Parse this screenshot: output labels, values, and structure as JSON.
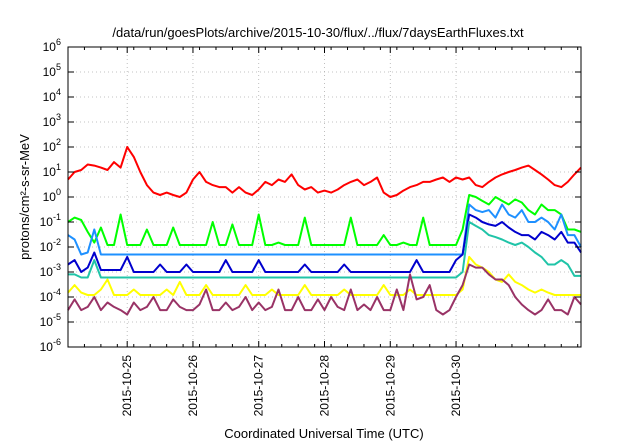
{
  "chart_data": {
    "type": "line",
    "title": "/data/run/goesPlots/archive/2015-10-30/flux/../flux/7daysEarthFluxes.txt",
    "xlabel": "Coordinated Universal Time (UTC)",
    "ylabel": "protons/cm²-s-sr-MeV",
    "y_scale": "log",
    "ylim": [
      1e-06,
      1000000.0
    ],
    "xlim": [
      -0.9,
      6.9
    ],
    "grid": true,
    "legend": "none",
    "y_ticks": [
      {
        "base": "10",
        "exp": "6"
      },
      {
        "base": "10",
        "exp": "5"
      },
      {
        "base": "10",
        "exp": "4"
      },
      {
        "base": "10",
        "exp": "3"
      },
      {
        "base": "10",
        "exp": "2"
      },
      {
        "base": "10",
        "exp": "1"
      },
      {
        "base": "10",
        "exp": "0"
      },
      {
        "base": "10",
        "exp": "-1"
      },
      {
        "base": "10",
        "exp": "-2"
      },
      {
        "base": "10",
        "exp": "-3"
      },
      {
        "base": "10",
        "exp": "-4"
      },
      {
        "base": "10",
        "exp": "-5"
      },
      {
        "base": "10",
        "exp": "-6"
      }
    ],
    "x_ticks": [
      "2015-10-25",
      "2015-10-26",
      "2015-10-27",
      "2015-10-28",
      "2015-10-29",
      "2015-10-30"
    ],
    "x_note": "x values are days offset from 2015-10-25 00:00 UTC",
    "series": [
      {
        "color": "#ff0000",
        "x": [
          -0.9,
          -0.8,
          -0.7,
          -0.6,
          -0.5,
          -0.4,
          -0.3,
          -0.2,
          -0.1,
          0,
          0.1,
          0.2,
          0.3,
          0.4,
          0.5,
          0.6,
          0.7,
          0.8,
          0.9,
          1,
          1.1,
          1.2,
          1.3,
          1.4,
          1.5,
          1.6,
          1.7,
          1.8,
          1.9,
          2,
          2.1,
          2.2,
          2.3,
          2.4,
          2.5,
          2.6,
          2.7,
          2.8,
          2.9,
          3,
          3.1,
          3.2,
          3.3,
          3.4,
          3.5,
          3.6,
          3.7,
          3.8,
          3.9,
          4,
          4.1,
          4.2,
          4.3,
          4.4,
          4.5,
          4.6,
          4.7,
          4.8,
          4.9,
          5,
          5.1,
          5.2,
          5.3,
          5.4,
          5.5,
          5.6,
          5.7,
          5.8,
          5.9,
          6,
          6.1,
          6.2,
          6.3,
          6.4,
          6.5,
          6.6,
          6.7,
          6.8,
          6.9
        ],
        "y": [
          5,
          10,
          12,
          20,
          18,
          15,
          12,
          25,
          15,
          100,
          40,
          10,
          3,
          1.5,
          1.2,
          1.5,
          1.2,
          1.0,
          1.5,
          5,
          10,
          4,
          3,
          2.5,
          2.5,
          1.5,
          2.5,
          1.5,
          1.2,
          2,
          4,
          3,
          5,
          4,
          8,
          3,
          2,
          2.5,
          1.5,
          1.8,
          1.5,
          2,
          3,
          4,
          5,
          3,
          4,
          6,
          1.5,
          1.0,
          1.2,
          1.8,
          2.5,
          3,
          4,
          4,
          5,
          6,
          4,
          6,
          5,
          6,
          3,
          2.5,
          4,
          6,
          8,
          10,
          12,
          15,
          18,
          12,
          8,
          5,
          3,
          2.5,
          4,
          8,
          15
        ]
      },
      {
        "color": "#00ff00",
        "x": [
          -0.9,
          -0.8,
          -0.7,
          -0.6,
          -0.5,
          -0.4,
          -0.3,
          -0.2,
          -0.1,
          0,
          0.1,
          0.2,
          0.3,
          0.4,
          0.5,
          0.6,
          0.7,
          0.8,
          0.9,
          1,
          1.1,
          1.2,
          1.3,
          1.4,
          1.5,
          1.6,
          1.7,
          1.8,
          1.9,
          2,
          2.1,
          2.2,
          2.3,
          2.4,
          2.5,
          2.6,
          2.7,
          2.8,
          2.9,
          3,
          3.1,
          3.2,
          3.3,
          3.4,
          3.5,
          3.6,
          3.7,
          3.8,
          3.9,
          4,
          4.1,
          4.2,
          4.3,
          4.4,
          4.5,
          4.6,
          4.7,
          4.8,
          4.9,
          5,
          5.1,
          5.2,
          5.3,
          5.4,
          5.5,
          5.6,
          5.7,
          5.8,
          5.9,
          6,
          6.1,
          6.2,
          6.3,
          6.4,
          6.5,
          6.6,
          6.7,
          6.8,
          6.9
        ],
        "y": [
          0.1,
          0.15,
          0.12,
          0.04,
          0.015,
          0.06,
          0.012,
          0.012,
          0.2,
          0.012,
          0.012,
          0.012,
          0.05,
          0.012,
          0.012,
          0.012,
          0.06,
          0.012,
          0.012,
          0.012,
          0.012,
          0.012,
          0.1,
          0.012,
          0.012,
          0.08,
          0.012,
          0.012,
          0.012,
          0.2,
          0.012,
          0.012,
          0.015,
          0.012,
          0.012,
          0.012,
          0.15,
          0.012,
          0.012,
          0.012,
          0.012,
          0.012,
          0.012,
          0.15,
          0.012,
          0.012,
          0.012,
          0.012,
          0.03,
          0.012,
          0.012,
          0.015,
          0.012,
          0.012,
          0.15,
          0.012,
          0.012,
          0.012,
          0.012,
          0.012,
          0.05,
          1.2,
          1.0,
          0.7,
          0.5,
          1.0,
          0.7,
          0.5,
          0.8,
          0.6,
          0.3,
          0.2,
          0.5,
          0.3,
          0.3,
          0.2,
          0.05,
          0.05,
          0.04
        ]
      },
      {
        "color": "#1e90ff",
        "x": [
          -0.9,
          -0.8,
          -0.7,
          -0.6,
          -0.5,
          -0.4,
          -0.3,
          -0.2,
          -0.1,
          0,
          0.1,
          0.2,
          0.3,
          0.4,
          0.5,
          0.6,
          0.7,
          0.8,
          0.9,
          1,
          1.1,
          1.2,
          1.3,
          1.4,
          1.5,
          1.6,
          1.7,
          1.8,
          1.9,
          2,
          2.1,
          2.2,
          2.3,
          2.4,
          2.5,
          2.6,
          2.7,
          2.8,
          2.9,
          3,
          3.1,
          3.2,
          3.3,
          3.4,
          3.5,
          3.6,
          3.7,
          3.8,
          3.9,
          4,
          4.1,
          4.2,
          4.3,
          4.4,
          4.5,
          4.6,
          4.7,
          4.8,
          4.9,
          5,
          5.1,
          5.2,
          5.3,
          5.4,
          5.5,
          5.6,
          5.7,
          5.8,
          5.9,
          6,
          6.1,
          6.2,
          6.3,
          6.4,
          6.5,
          6.6,
          6.7,
          6.8,
          6.9
        ],
        "y": [
          0.03,
          0.02,
          0.005,
          0.006,
          0.05,
          0.005,
          0.005,
          0.005,
          0.005,
          0.005,
          0.005,
          0.005,
          0.005,
          0.005,
          0.005,
          0.005,
          0.005,
          0.005,
          0.005,
          0.005,
          0.005,
          0.005,
          0.005,
          0.005,
          0.005,
          0.005,
          0.005,
          0.005,
          0.005,
          0.005,
          0.005,
          0.005,
          0.005,
          0.005,
          0.005,
          0.005,
          0.005,
          0.005,
          0.005,
          0.005,
          0.005,
          0.005,
          0.005,
          0.005,
          0.005,
          0.005,
          0.005,
          0.005,
          0.005,
          0.005,
          0.005,
          0.005,
          0.005,
          0.005,
          0.005,
          0.005,
          0.005,
          0.005,
          0.005,
          0.005,
          0.005,
          0.5,
          0.3,
          0.25,
          0.3,
          0.15,
          0.5,
          0.2,
          0.15,
          0.3,
          0.1,
          0.1,
          0.15,
          0.1,
          0.05,
          0.2,
          0.03,
          0.03,
          0.01
        ]
      },
      {
        "color": "#0000cd",
        "x": [
          -0.9,
          -0.8,
          -0.7,
          -0.6,
          -0.5,
          -0.4,
          -0.3,
          -0.2,
          -0.1,
          0,
          0.1,
          0.2,
          0.3,
          0.4,
          0.5,
          0.6,
          0.7,
          0.8,
          0.9,
          1,
          1.1,
          1.2,
          1.3,
          1.4,
          1.5,
          1.6,
          1.7,
          1.8,
          1.9,
          2,
          2.1,
          2.2,
          2.3,
          2.4,
          2.5,
          2.6,
          2.7,
          2.8,
          2.9,
          3,
          3.1,
          3.2,
          3.3,
          3.4,
          3.5,
          3.6,
          3.7,
          3.8,
          3.9,
          4,
          4.1,
          4.2,
          4.3,
          4.4,
          4.5,
          4.6,
          4.7,
          4.8,
          4.9,
          5,
          5.1,
          5.2,
          5.3,
          5.4,
          5.5,
          5.6,
          5.7,
          5.8,
          5.9,
          6,
          6.1,
          6.2,
          6.3,
          6.4,
          6.5,
          6.6,
          6.7,
          6.8,
          6.9
        ],
        "y": [
          0.002,
          0.003,
          0.001,
          0.0015,
          0.006,
          0.0012,
          0.0012,
          0.0012,
          0.0012,
          0.004,
          0.001,
          0.001,
          0.001,
          0.001,
          0.002,
          0.001,
          0.001,
          0.001,
          0.002,
          0.001,
          0.001,
          0.001,
          0.001,
          0.001,
          0.003,
          0.001,
          0.001,
          0.001,
          0.001,
          0.003,
          0.001,
          0.001,
          0.001,
          0.001,
          0.001,
          0.001,
          0.002,
          0.001,
          0.001,
          0.001,
          0.001,
          0.001,
          0.002,
          0.001,
          0.001,
          0.001,
          0.001,
          0.001,
          0.001,
          0.001,
          0.001,
          0.001,
          0.001,
          0.003,
          0.001,
          0.001,
          0.001,
          0.001,
          0.001,
          0.003,
          0.005,
          0.2,
          0.15,
          0.1,
          0.08,
          0.07,
          0.1,
          0.06,
          0.04,
          0.03,
          0.03,
          0.02,
          0.04,
          0.03,
          0.02,
          0.04,
          0.015,
          0.015,
          0.006
        ]
      },
      {
        "color": "#20c4a8",
        "x": [
          -0.9,
          -0.8,
          -0.7,
          -0.6,
          -0.5,
          -0.4,
          -0.3,
          -0.2,
          -0.1,
          0,
          0.1,
          0.2,
          0.3,
          0.4,
          0.5,
          0.6,
          0.7,
          0.8,
          0.9,
          1,
          1.1,
          1.2,
          1.3,
          1.4,
          1.5,
          1.6,
          1.7,
          1.8,
          1.9,
          2,
          2.1,
          2.2,
          2.3,
          2.4,
          2.5,
          2.6,
          2.7,
          2.8,
          2.9,
          3,
          3.1,
          3.2,
          3.3,
          3.4,
          3.5,
          3.6,
          3.7,
          3.8,
          3.9,
          4,
          4.1,
          4.2,
          4.3,
          4.4,
          4.5,
          4.6,
          4.7,
          4.8,
          4.9,
          5,
          5.1,
          5.2,
          5.3,
          5.4,
          5.5,
          5.6,
          5.7,
          5.8,
          5.9,
          6,
          6.1,
          6.2,
          6.3,
          6.4,
          6.5,
          6.6,
          6.7,
          6.8,
          6.9
        ],
        "y": [
          0.0008,
          0.0008,
          0.0006,
          0.0006,
          0.003,
          0.0006,
          0.0006,
          0.0006,
          0.0006,
          0.0006,
          0.0006,
          0.0006,
          0.0006,
          0.0006,
          0.0006,
          0.0006,
          0.0006,
          0.0006,
          0.0006,
          0.0006,
          0.0006,
          0.0006,
          0.0006,
          0.0006,
          0.0006,
          0.0006,
          0.0006,
          0.0006,
          0.0006,
          0.0006,
          0.0006,
          0.0006,
          0.0006,
          0.0006,
          0.0006,
          0.0006,
          0.0006,
          0.0006,
          0.0006,
          0.0006,
          0.0006,
          0.0006,
          0.0006,
          0.0006,
          0.0006,
          0.0006,
          0.0006,
          0.0006,
          0.0006,
          0.0006,
          0.0006,
          0.0006,
          0.0006,
          0.0006,
          0.0006,
          0.0006,
          0.0006,
          0.0006,
          0.0006,
          0.0006,
          0.001,
          0.1,
          0.07,
          0.05,
          0.03,
          0.025,
          0.02,
          0.015,
          0.012,
          0.015,
          0.01,
          0.006,
          0.004,
          0.002,
          0.002,
          0.003,
          0.002,
          0.0007,
          0.0007
        ]
      },
      {
        "color": "#ffff00",
        "x": [
          -0.9,
          -0.8,
          -0.7,
          -0.6,
          -0.5,
          -0.4,
          -0.3,
          -0.2,
          -0.1,
          0,
          0.1,
          0.2,
          0.3,
          0.4,
          0.5,
          0.6,
          0.7,
          0.8,
          0.9,
          1,
          1.1,
          1.2,
          1.3,
          1.4,
          1.5,
          1.6,
          1.7,
          1.8,
          1.9,
          2,
          2.1,
          2.2,
          2.3,
          2.4,
          2.5,
          2.6,
          2.7,
          2.8,
          2.9,
          3,
          3.1,
          3.2,
          3.3,
          3.4,
          3.5,
          3.6,
          3.7,
          3.8,
          3.9,
          4,
          4.1,
          4.2,
          4.3,
          4.4,
          4.5,
          4.6,
          4.7,
          4.8,
          4.9,
          5,
          5.1,
          5.2,
          5.3,
          5.4,
          5.5,
          5.6,
          5.7,
          5.8,
          5.9,
          6,
          6.1,
          6.2,
          6.3,
          6.4,
          6.5,
          6.6,
          6.7,
          6.8,
          6.9
        ],
        "y": [
          0.00015,
          0.0003,
          0.00015,
          0.00012,
          0.00012,
          0.0002,
          0.0005,
          0.00012,
          0.00012,
          0.00012,
          0.0002,
          0.00012,
          0.00012,
          0.00012,
          0.00012,
          0.0002,
          0.00012,
          0.0004,
          0.00012,
          0.00012,
          0.00012,
          0.0003,
          0.00012,
          0.00012,
          0.00012,
          0.00012,
          0.00012,
          0.0003,
          0.00012,
          0.00012,
          0.00012,
          0.0002,
          0.00012,
          0.00012,
          0.00012,
          0.00012,
          0.0003,
          0.00012,
          0.00012,
          0.00012,
          0.00012,
          0.00012,
          0.0002,
          0.00012,
          0.00012,
          0.00012,
          0.00012,
          0.00012,
          0.0003,
          0.00012,
          0.00012,
          0.00012,
          0.0002,
          0.00012,
          0.00012,
          0.00012,
          0.00012,
          0.00012,
          0.00012,
          0.00012,
          0.0002,
          0.004,
          0.002,
          0.0015,
          0.001,
          0.0005,
          0.0004,
          0.0008,
          0.0004,
          0.0003,
          0.0002,
          0.00015,
          0.0002,
          0.00015,
          0.00012,
          0.00012,
          0.00012,
          0.00012,
          0.00012
        ]
      },
      {
        "color": "#993366",
        "x": [
          -0.9,
          -0.8,
          -0.7,
          -0.6,
          -0.5,
          -0.4,
          -0.3,
          -0.2,
          -0.1,
          0,
          0.1,
          0.2,
          0.3,
          0.4,
          0.5,
          0.6,
          0.7,
          0.8,
          0.9,
          1,
          1.1,
          1.2,
          1.3,
          1.4,
          1.5,
          1.6,
          1.7,
          1.8,
          1.9,
          2,
          2.1,
          2.2,
          2.3,
          2.4,
          2.5,
          2.6,
          2.7,
          2.8,
          2.9,
          3,
          3.1,
          3.2,
          3.3,
          3.4,
          3.5,
          3.6,
          3.7,
          3.8,
          3.9,
          4,
          4.1,
          4.2,
          4.3,
          4.4,
          4.5,
          4.6,
          4.7,
          4.8,
          4.9,
          5,
          5.1,
          5.2,
          5.3,
          5.4,
          5.5,
          5.6,
          5.7,
          5.8,
          5.9,
          6,
          6.1,
          6.2,
          6.3,
          6.4,
          6.5,
          6.6,
          6.7,
          6.8,
          6.9
        ],
        "y": [
          3e-05,
          8e-05,
          3e-05,
          4e-05,
          0.0001,
          3e-05,
          6e-05,
          4e-05,
          3e-05,
          2e-05,
          6e-05,
          3e-05,
          4e-05,
          0.0001,
          3e-05,
          3e-05,
          8e-05,
          4e-05,
          3e-05,
          3e-05,
          5e-05,
          0.0002,
          3e-05,
          3e-05,
          6e-05,
          3e-05,
          4e-05,
          0.0001,
          3e-05,
          6e-05,
          3e-05,
          4e-05,
          0.0002,
          3e-05,
          3e-05,
          0.0001,
          3e-05,
          3e-05,
          8e-05,
          3e-05,
          0.0001,
          4e-05,
          3e-05,
          0.0002,
          3e-05,
          5e-05,
          3e-05,
          0.0001,
          3e-05,
          3e-05,
          0.0002,
          3e-05,
          0.0008,
          8e-05,
          0.0001,
          0.0003,
          3e-05,
          2e-05,
          3e-05,
          0.0001,
          0.0003,
          0.002,
          0.0015,
          0.0015,
          0.0008,
          0.0005,
          0.0005,
          0.0003,
          0.0001,
          5e-05,
          3e-05,
          2e-05,
          3e-05,
          8e-05,
          3e-05,
          3e-05,
          2e-05,
          0.0001,
          5e-05
        ]
      }
    ]
  }
}
